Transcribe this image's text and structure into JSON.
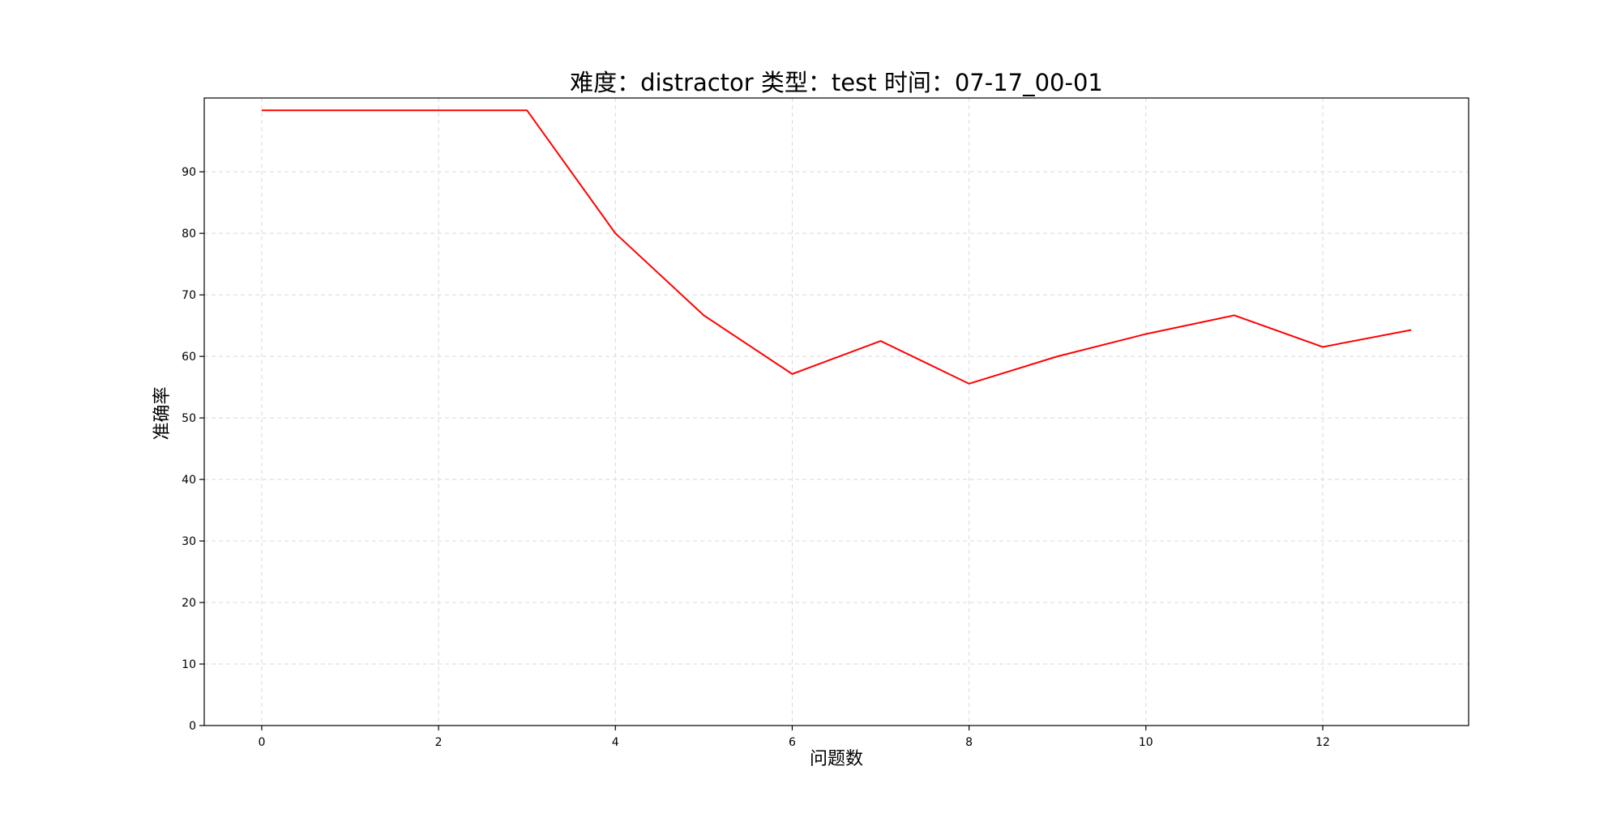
{
  "chart_data": {
    "type": "line",
    "title": "难度：distractor 类型：test 时间：07-17_00-01",
    "xlabel": "问题数",
    "ylabel": "准确率",
    "x": [
      0,
      1,
      2,
      3,
      4,
      5,
      6,
      7,
      8,
      9,
      10,
      11,
      12,
      13
    ],
    "series": [
      {
        "values": [
          100,
          100,
          100,
          100,
          80,
          66.67,
          57.14,
          62.5,
          55.56,
          60,
          63.64,
          66.67,
          61.54,
          64.29
        ]
      }
    ],
    "xlim": [
      -0.65,
      13.65
    ],
    "ylim": [
      0,
      102
    ],
    "x_ticks": [
      0,
      2,
      4,
      6,
      8,
      10,
      12
    ],
    "y_ticks": [
      0,
      10,
      20,
      30,
      40,
      50,
      60,
      70,
      80,
      90
    ],
    "grid": true,
    "line_color": "#ff0000",
    "grid_color": "#d9d9d9"
  }
}
